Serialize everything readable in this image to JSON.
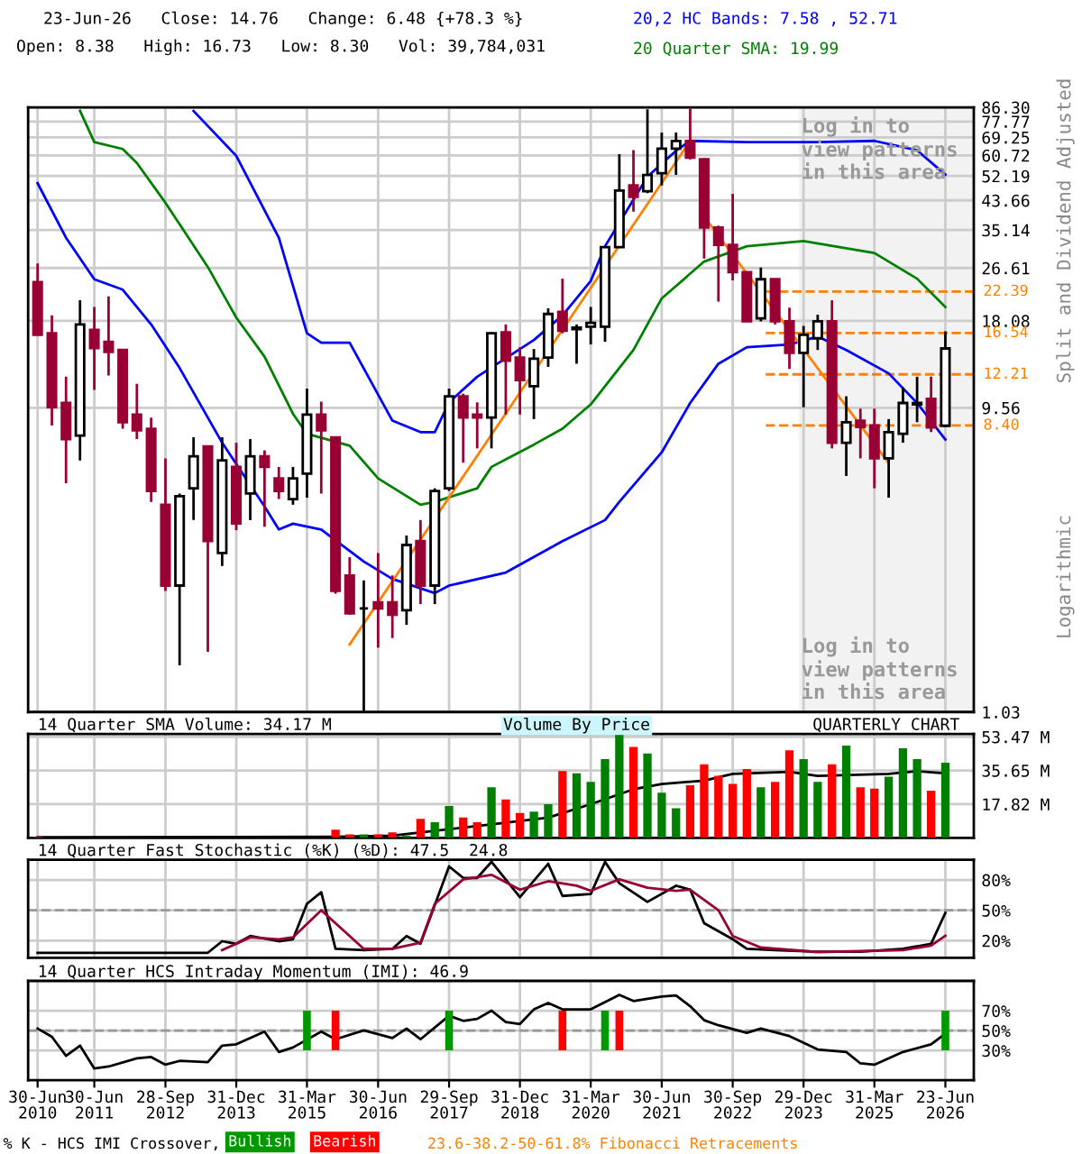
{
  "chart_data": [
    {
      "type": "candlestick",
      "title": "23-Jun-26   Close: 14.76   Change: 6.48 {+78.3 %}",
      "subtitle": "Open: 8.38   High: 16.73   Low: 8.30   Vol: 39,784,031",
      "x": [
        "2010-06",
        "2010-09",
        "2010-12",
        "2011-03",
        "2011-06",
        "2011-09",
        "2011-12",
        "2012-03",
        "2012-06",
        "2012-09",
        "2012-12",
        "2013-03",
        "2013-06",
        "2013-09",
        "2013-12",
        "2014-03",
        "2014-06",
        "2014-09",
        "2014-12",
        "2015-03",
        "2015-06",
        "2015-09",
        "2015-12",
        "2016-03",
        "2016-06",
        "2016-09",
        "2016-12",
        "2017-03",
        "2017-06",
        "2017-09",
        "2017-12",
        "2018-03",
        "2018-06",
        "2018-09",
        "2018-12",
        "2019-03",
        "2019-06",
        "2019-09",
        "2019-12",
        "2020-03",
        "2020-06",
        "2020-09",
        "2020-12",
        "2021-03",
        "2021-06",
        "2021-09",
        "2021-12",
        "2022-03",
        "2022-06",
        "2022-09",
        "2022-12",
        "2023-03",
        "2023-06",
        "2023-09",
        "2023-12",
        "2024-03",
        "2024-06",
        "2024-09",
        "2024-12",
        "2025-03",
        "2025-06",
        "2025-09",
        "2025-12",
        "2026-03",
        "2026-06"
      ],
      "ohlc": [
        [
          24.0,
          27.5,
          16.3,
          16.3
        ],
        [
          16.5,
          18.8,
          8.4,
          9.6
        ],
        [
          9.9,
          12.0,
          5.5,
          7.6
        ],
        [
          7.8,
          21.0,
          6.5,
          17.6
        ],
        [
          16.9,
          20.0,
          10.9,
          14.8
        ],
        [
          15.5,
          21.6,
          12.1,
          14.4
        ],
        [
          14.6,
          14.6,
          8.2,
          8.6
        ],
        [
          9.1,
          11.4,
          7.6,
          8.1
        ],
        [
          8.2,
          8.9,
          4.8,
          5.2
        ],
        [
          4.7,
          6.6,
          2.5,
          2.6
        ],
        [
          2.6,
          5.1,
          1.45,
          5.0
        ],
        [
          5.3,
          7.7,
          4.2,
          6.7
        ],
        [
          7.2,
          7.2,
          1.6,
          3.6
        ],
        [
          3.3,
          7.7,
          3.0,
          6.5
        ],
        [
          6.2,
          7.4,
          3.9,
          4.1
        ],
        [
          5.1,
          7.6,
          4.2,
          6.7
        ],
        [
          6.7,
          7.0,
          4.0,
          6.2
        ],
        [
          5.7,
          6.2,
          4.9,
          5.2
        ],
        [
          4.9,
          6.2,
          4.7,
          5.7
        ],
        [
          5.9,
          11.0,
          4.95,
          9.1
        ],
        [
          9.1,
          10.0,
          5.1,
          8.1
        ],
        [
          7.7,
          7.7,
          2.45,
          2.5
        ],
        [
          2.8,
          3.2,
          2.1,
          2.12
        ],
        [
          2.2,
          2.7,
          1.03,
          2.2
        ],
        [
          2.3,
          3.3,
          1.65,
          2.2
        ],
        [
          2.3,
          2.8,
          1.77,
          2.1
        ],
        [
          2.17,
          3.75,
          1.95,
          3.5
        ],
        [
          3.6,
          4.2,
          2.27,
          2.6
        ],
        [
          2.6,
          5.3,
          2.27,
          5.2
        ],
        [
          5.3,
          11.0,
          5.2,
          10.4
        ],
        [
          10.4,
          10.6,
          6.4,
          8.9
        ],
        [
          9.1,
          9.95,
          7.1,
          8.9
        ],
        [
          8.9,
          16.6,
          7.1,
          16.5
        ],
        [
          16.6,
          17.6,
          9.1,
          13.5
        ],
        [
          13.8,
          14.9,
          9.1,
          11.7
        ],
        [
          11.2,
          14.7,
          8.8,
          13.7
        ],
        [
          13.8,
          19.8,
          12.9,
          19.0
        ],
        [
          19.3,
          24.6,
          16.5,
          16.8
        ],
        [
          17.0,
          17.6,
          13.2,
          17.2
        ],
        [
          17.3,
          20.0,
          15.2,
          17.8
        ],
        [
          17.3,
          31.2,
          15.5,
          31.0
        ],
        [
          31.0,
          61.2,
          30.8,
          46.9
        ],
        [
          48.7,
          63.1,
          40.2,
          44.8
        ],
        [
          46.7,
          85.0,
          46.0,
          52.6
        ],
        [
          53.3,
          71.8,
          48.7,
          63.8
        ],
        [
          63.8,
          71.8,
          52.6,
          67.4
        ],
        [
          67.4,
          85.5,
          59.0,
          59.7
        ],
        [
          59.0,
          59.4,
          28.5,
          35.8
        ],
        [
          35.8,
          36.3,
          20.8,
          31.5
        ],
        [
          31.5,
          45.8,
          24.3,
          25.8
        ],
        [
          25.8,
          25.8,
          18.0,
          18.0
        ],
        [
          18.4,
          26.7,
          18.0,
          24.5
        ],
        [
          24.5,
          24.6,
          17.6,
          18.0
        ],
        [
          18.0,
          19.9,
          12.7,
          14.3
        ],
        [
          14.3,
          17.4,
          9.6,
          16.3
        ],
        [
          15.9,
          18.9,
          14.6,
          18.0
        ],
        [
          18.0,
          21.0,
          7.1,
          7.4
        ],
        [
          7.4,
          10.4,
          5.8,
          8.6
        ],
        [
          8.7,
          9.5,
          6.6,
          8.3
        ],
        [
          8.4,
          9.5,
          5.3,
          6.6
        ],
        [
          6.6,
          8.8,
          4.95,
          8.0
        ],
        [
          7.9,
          11.1,
          7.4,
          9.9
        ],
        [
          9.8,
          12.0,
          8.6,
          9.9
        ],
        [
          10.2,
          12.0,
          8.0,
          8.28
        ],
        [
          8.38,
          16.73,
          8.3,
          14.76
        ]
      ],
      "colors": [
        "#990033",
        "#990033",
        "#990033",
        "#000000",
        "#990033",
        "#990033",
        "#990033",
        "#990033",
        "#990033",
        "#990033",
        "#000000",
        "#000000",
        "#990033",
        "#000000",
        "#990033",
        "#000000",
        "#990033",
        "#990033",
        "#000000",
        "#000000",
        "#990033",
        "#990033",
        "#990033",
        "#000000",
        "#990033",
        "#990033",
        "#000000",
        "#990033",
        "#000000",
        "#000000",
        "#990033",
        "#990033",
        "#000000",
        "#990033",
        "#990033",
        "#000000",
        "#000000",
        "#990033",
        "#000000",
        "#000000",
        "#000000",
        "#000000",
        "#990033",
        "#000000",
        "#000000",
        "#000000",
        "#990033",
        "#990033",
        "#990033",
        "#990033",
        "#990033",
        "#000000",
        "#990033",
        "#990033",
        "#000000",
        "#000000",
        "#990033",
        "#000000",
        "#990033",
        "#990033",
        "#000000",
        "#000000",
        "#000000",
        "#990033",
        "#000000"
      ],
      "series": [
        {
          "name": "20,2 HC Bands: 7.58 , 52.71",
          "type": "line",
          "color": "#0000ff",
          "x": [
            "2013-03",
            "2013-12",
            "2014-09",
            "2015-03",
            "2015-06",
            "2015-12",
            "2016-09",
            "2017-03",
            "2017-06",
            "2017-09",
            "2018-03",
            "2019-03",
            "2019-09",
            "2020-03",
            "2020-06",
            "2021-03",
            "2021-09",
            "2021-12",
            "2022-12",
            "2024-03",
            "2025-03",
            "2025-12",
            "2026-06"
          ],
          "values": [
            84,
            60.5,
            33.2,
            16.5,
            15.4,
            15.4,
            8.7,
            8.0,
            8.0,
            9.95,
            12.0,
            15.7,
            18.8,
            24.2,
            31.2,
            51.9,
            62.8,
            67.5,
            66.9,
            66.9,
            67.5,
            63,
            52.71
          ]
        },
        {
          "type": "line",
          "color": "#0000ff",
          "x": [
            "2010-06",
            "2010-12",
            "2011-06",
            "2011-12",
            "2012-06",
            "2012-12",
            "2013-09",
            "2014-06",
            "2014-09",
            "2014-12",
            "2015-06",
            "2016-03",
            "2016-09",
            "2017-06",
            "2017-09",
            "2018-09",
            "2019-09",
            "2020-06",
            "2020-09",
            "2021-06",
            "2021-12",
            "2022-06",
            "2022-12",
            "2023-09",
            "2024-03",
            "2024-09",
            "2025-06",
            "2025-12",
            "2026-06"
          ],
          "values": [
            49.5,
            33.2,
            24.5,
            22.7,
            17.6,
            12.8,
            7.4,
            4.64,
            3.92,
            4.09,
            3.92,
            3.1,
            2.73,
            2.46,
            2.6,
            2.86,
            3.6,
            4.2,
            4.8,
            6.9,
            9.9,
            13.2,
            14.9,
            15.2,
            16.1,
            14.6,
            12.3,
            9.9,
            7.58
          ]
        },
        {
          "name": "20 Quarter SMA: 19.99",
          "type": "line",
          "color": "#008000",
          "x": [
            "2011-03",
            "2011-06",
            "2011-12",
            "2012-03",
            "2012-09",
            "2013-06",
            "2013-12",
            "2014-06",
            "2014-12",
            "2015-03",
            "2015-12",
            "2016-06",
            "2017-03",
            "2017-06",
            "2018-03",
            "2018-06",
            "2019-03",
            "2019-09",
            "2020-03",
            "2020-12",
            "2021-06",
            "2022-03",
            "2022-12",
            "2023-12",
            "2025-03",
            "2025-12",
            "2026-06"
          ],
          "values": [
            84.1,
            66.9,
            63.6,
            57.4,
            42.9,
            26.8,
            18.5,
            13.9,
            9.15,
            7.9,
            7.24,
            5.7,
            4.7,
            4.8,
            5.3,
            6.2,
            7.3,
            8.2,
            9.8,
            14.6,
            21.3,
            27.9,
            31.2,
            32.4,
            29.7,
            24.6,
            19.99
          ]
        },
        {
          "type": "line",
          "color": "#ff8000",
          "x": [
            "2015-12",
            "2021-12"
          ],
          "values": [
            1.69,
            67.5
          ]
        },
        {
          "type": "line",
          "color": "#ff8000",
          "x": [
            "2022-03",
            "2025-06"
          ],
          "values": [
            38.8,
            6.38
          ]
        }
      ],
      "log": true,
      "xlim": [
        "2010-04",
        "2026-12"
      ],
      "ylim": [
        1.03,
        86.3
      ],
      "yticks": [
        1.03,
        9.56,
        18.08,
        26.61,
        35.14,
        43.66,
        52.19,
        60.72,
        69.25,
        77.77,
        {
          "value": 86.3,
          "label": "86.30"
        }
      ],
      "xticks": [
        "2010-06",
        "2011-06",
        "2012-09",
        "2013-12",
        "2015-03",
        "2016-06",
        "2017-09",
        "2018-12",
        "2020-03",
        "2021-06",
        "2022-09",
        "2023-12",
        "2025-03",
        "2026-06"
      ],
      "tick_labels": "y",
      "grid": true,
      "legend": "top right",
      "ref_lines": [
        {
          "axis": "y",
          "value": 22.39,
          "label": "22.39",
          "color": "#ff8000",
          "line_style": "dashed"
        },
        {
          "axis": "y",
          "value": 16.54,
          "label": "16.54",
          "color": "#ff8000",
          "line_style": "dashed"
        },
        {
          "axis": "y",
          "value": 12.21,
          "label": "12.21",
          "color": "#ff8000",
          "line_style": "dashed"
        },
        {
          "axis": "y",
          "value": 8.4,
          "label": "8.40",
          "color": "#ff8000",
          "line_style": "dashed"
        }
      ],
      "bands": [
        {
          "axis": "x",
          "from": "2023-11",
          "to": "2026-12",
          "label": "Log in to view patterns in this area",
          "color": "#f2f2f2"
        }
      ],
      "annotations": [
        "Split and Dividend Adjusted",
        "Logarithmic",
        "Log in to view patterns in this area",
        "23.6-38.2-50-61.8% Fibonacci Retracements"
      ]
    },
    {
      "type": "bar",
      "title": "14 Quarter SMA Volume: 34.17 M",
      "x": [
        "2010-06",
        "2010-09",
        "2010-12",
        "2011-03",
        "2011-06",
        "2011-09",
        "2011-12",
        "2012-03",
        "2012-06",
        "2012-09",
        "2012-12",
        "2013-03",
        "2013-06",
        "2013-09",
        "2013-12",
        "2014-03",
        "2014-06",
        "2014-09",
        "2014-12",
        "2015-03",
        "2015-06",
        "2015-09",
        "2015-12",
        "2016-03",
        "2016-06",
        "2016-09",
        "2016-12",
        "2017-03",
        "2017-06",
        "2017-09",
        "2017-12",
        "2018-03",
        "2018-06",
        "2018-09",
        "2018-12",
        "2019-03",
        "2019-06",
        "2019-09",
        "2019-12",
        "2020-03",
        "2020-06",
        "2020-09",
        "2020-12",
        "2021-03",
        "2021-06",
        "2021-09",
        "2021-12",
        "2022-03",
        "2022-06",
        "2022-09",
        "2022-12",
        "2023-03",
        "2023-06",
        "2023-09",
        "2023-12",
        "2024-03",
        "2024-06",
        "2024-09",
        "2024-12",
        "2025-03",
        "2025-06",
        "2025-09",
        "2025-12",
        "2026-03",
        "2026-06"
      ],
      "values": [
        0.5,
        null,
        null,
        null,
        null,
        null,
        null,
        null,
        null,
        null,
        null,
        null,
        null,
        null,
        null,
        null,
        null,
        null,
        null,
        null,
        null,
        4.3,
        1.8,
        1.8,
        1.8,
        2.9,
        1.1,
        10.0,
        8.2,
        16.8,
        10.7,
        8.2,
        26.7,
        20.3,
        13.2,
        13.9,
        17.8,
        35.3,
        34.2,
        29.6,
        41.7,
        54.5,
        48.1,
        44.6,
        23.9,
        15.7,
        27.8,
        38.9,
        32.8,
        28.5,
        36.4,
        26.7,
        29.6,
        46.3,
        41.7,
        29.6,
        38.9,
        48.8,
        26.7,
        26.0,
        32.4,
        47.4,
        41.7,
        25.0,
        39.78
      ],
      "colors": [
        "#ff0000",
        "#ff0000",
        "#ff0000",
        "#ff0000",
        "#ff0000",
        "#ff0000",
        "#ff0000",
        "#ff0000",
        "#ff0000",
        "#ff0000",
        "#ff0000",
        "#ff0000",
        "#ff0000",
        "#ff0000",
        "#ff0000",
        "#ff0000",
        "#ff0000",
        "#ff0000",
        "#ff0000",
        "#ff0000",
        "#ff0000",
        "#ff0000",
        "#ff0000",
        "#008000",
        "#ff0000",
        "#ff0000",
        "#008000",
        "#ff0000",
        "#008000",
        "#008000",
        "#ff0000",
        "#ff0000",
        "#008000",
        "#ff0000",
        "#ff0000",
        "#008000",
        "#008000",
        "#ff0000",
        "#008000",
        "#008000",
        "#008000",
        "#008000",
        "#ff0000",
        "#008000",
        "#008000",
        "#008000",
        "#ff0000",
        "#ff0000",
        "#ff0000",
        "#ff0000",
        "#ff0000",
        "#008000",
        "#ff0000",
        "#ff0000",
        "#008000",
        "#008000",
        "#ff0000",
        "#008000",
        "#ff0000",
        "#ff0000",
        "#008000",
        "#008000",
        "#008000",
        "#ff0000",
        "#008000"
      ],
      "series": [
        {
          "type": "line",
          "color": "#000000",
          "x": [
            "2010-06",
            "2015-09",
            "2016-09",
            "2018-06",
            "2019-06",
            "2020-03",
            "2020-12",
            "2021-06",
            "2022-03",
            "2022-09",
            "2023-09",
            "2024-03",
            "2025-06",
            "2025-12",
            "2026-06"
          ],
          "values": [
            0.3,
            0.5,
            1.1,
            7.1,
            10.7,
            17.8,
            25.7,
            28.5,
            30.3,
            33.9,
            34.9,
            32.8,
            33.9,
            35.3,
            34.17
          ]
        }
      ],
      "xlim": [
        "2010-04",
        "2026-12"
      ],
      "ylim": [
        0,
        55
      ],
      "yticks": [
        {
          "value": 17.82,
          "label": "17.82 M"
        },
        {
          "value": 35.65,
          "label": "35.65 M"
        },
        {
          "value": 53.47,
          "label": "53.47 M"
        }
      ],
      "xticks": [
        "2010-06",
        "2011-06",
        "2012-09",
        "2013-12",
        "2015-03",
        "2016-06",
        "2017-09",
        "2018-12",
        "2020-03",
        "2021-06",
        "2022-09",
        "2023-12",
        "2025-03",
        "2026-06"
      ],
      "tick_labels": "y",
      "grid": true,
      "annotations": [
        "Volume By Price",
        "QUARTERLY CHART"
      ]
    },
    {
      "type": "line",
      "title": "14 Quarter Fast Stochastic (%K) (%D): 47.5  24.8",
      "series": [
        {
          "color": "#000000",
          "x": [
            "2010-06",
            "2013-06",
            "2013-09",
            "2013-12",
            "2014-03",
            "2014-09",
            "2014-12",
            "2015-03",
            "2015-06",
            "2015-09",
            "2016-03",
            "2016-09",
            "2016-12",
            "2017-03",
            "2017-09",
            "2017-12",
            "2018-03",
            "2018-06",
            "2018-12",
            "2019-06",
            "2019-09",
            "2020-03",
            "2020-06",
            "2020-09",
            "2021-03",
            "2021-09",
            "2021-12",
            "2022-03",
            "2022-09",
            "2022-12",
            "2023-06",
            "2024-03",
            "2024-12",
            "2025-09",
            "2026-03",
            "2026-06"
          ],
          "values": [
            8,
            8,
            19.4,
            16.9,
            24.6,
            19.4,
            21.4,
            56.4,
            67.9,
            11.9,
            10.6,
            11.9,
            24.6,
            16.9,
            93.4,
            82,
            82,
            97.9,
            62.9,
            96,
            64.2,
            66.1,
            97.9,
            76.8,
            58.3,
            74.3,
            70.4,
            37.3,
            21.4,
            11.9,
            10.6,
            9,
            9,
            11.9,
            16.9,
            47.5
          ]
        },
        {
          "color": "#990033",
          "x": [
            "2013-09",
            "2014-03",
            "2014-09",
            "2014-12",
            "2015-06",
            "2015-12",
            "2016-03",
            "2016-09",
            "2017-03",
            "2017-06",
            "2017-12",
            "2018-06",
            "2018-12",
            "2019-06",
            "2019-12",
            "2020-03",
            "2020-09",
            "2021-03",
            "2021-09",
            "2021-12",
            "2022-06",
            "2022-09",
            "2023-03",
            "2024-03",
            "2025-09",
            "2026-03",
            "2026-06"
          ],
          "values": [
            10.6,
            23.3,
            21.4,
            23.3,
            50,
            24.6,
            11.9,
            11.9,
            18,
            56.4,
            80.6,
            85.1,
            70.4,
            78.7,
            74.3,
            69.3,
            80.6,
            72.3,
            69.3,
            70.4,
            50,
            24.6,
            13.2,
            8.7,
            10.6,
            15.1,
            24.8
          ]
        }
      ],
      "xlim": [
        "2010-04",
        "2026-12"
      ],
      "ylim": [
        3,
        100
      ],
      "yticks": [
        {
          "value": 20,
          "label": "20%"
        },
        {
          "value": 50,
          "label": "50%"
        },
        {
          "value": 80,
          "label": "80%"
        }
      ],
      "xticks": [
        "2010-06",
        "2011-06",
        "2012-09",
        "2013-12",
        "2015-03",
        "2016-06",
        "2017-09",
        "2018-12",
        "2020-03",
        "2021-06",
        "2022-09",
        "2023-12",
        "2025-03",
        "2026-06"
      ],
      "tick_labels": "y",
      "grid": true,
      "ref_lines": [
        {
          "axis": "y",
          "value": 50,
          "color": "#999999",
          "line_style": "dashed"
        }
      ]
    },
    {
      "type": "line",
      "title": "14 Quarter HCS Intraday Momentum (IMI): 46.9",
      "legend_title": "% K - HCS IMI Crossover,",
      "series": [
        {
          "color": "#000000",
          "x": [
            "2010-06",
            "2010-09",
            "2010-12",
            "2011-03",
            "2011-06",
            "2011-09",
            "2012-03",
            "2012-06",
            "2012-09",
            "2012-12",
            "2013-06",
            "2013-09",
            "2013-12",
            "2014-06",
            "2014-09",
            "2014-12",
            "2015-06",
            "2015-09",
            "2016-03",
            "2016-09",
            "2016-12",
            "2017-03",
            "2017-09",
            "2017-12",
            "2018-03",
            "2018-06",
            "2018-09",
            "2018-12",
            "2019-03",
            "2019-06",
            "2019-09",
            "2020-03",
            "2020-09",
            "2020-12",
            "2021-06",
            "2021-09",
            "2021-12",
            "2022-03",
            "2022-06",
            "2022-12",
            "2023-03",
            "2023-09",
            "2024-03",
            "2024-09",
            "2024-12",
            "2025-03",
            "2025-09",
            "2026-03",
            "2026-06"
          ],
          "values": [
            52,
            43.7,
            24.5,
            34.8,
            11.7,
            13.7,
            22,
            23.3,
            15.6,
            19.4,
            18.1,
            34.8,
            36.1,
            48.9,
            28.4,
            32.9,
            48.9,
            41.2,
            50.1,
            42.5,
            52,
            41.2,
            64.9,
            59.8,
            61.7,
            70,
            58.5,
            56.6,
            71.3,
            77.8,
            71.3,
            71.3,
            86,
            79.7,
            84.2,
            85.4,
            74.5,
            60.4,
            55.3,
            47.6,
            52,
            44.4,
            30.9,
            28.4,
            16.9,
            15.6,
            28.4,
            36.1,
            46.9
          ]
        },
        {
          "name": "Bullish",
          "type": "bar",
          "color": "#009900",
          "x": [
            "2015-03",
            "2017-09",
            "2020-06",
            "2026-06"
          ],
          "base": [
            30,
            30,
            30,
            30
          ],
          "values": [
            40,
            40,
            40,
            40
          ]
        },
        {
          "name": "Bearish",
          "type": "bar",
          "color": "#ff0000",
          "x": [
            "2015-09",
            "2019-09",
            "2020-09"
          ],
          "base": [
            30,
            30,
            30
          ],
          "values": [
            40,
            40,
            40
          ]
        }
      ],
      "xlim": [
        "2010-04",
        "2026-12"
      ],
      "ylim": [
        0,
        100
      ],
      "yticks": [
        {
          "value": 30,
          "label": "30%"
        },
        {
          "value": 50,
          "label": "50%"
        },
        {
          "value": 70,
          "label": "70%"
        }
      ],
      "xticks": [
        {
          "value": "2010-06",
          "label": "30-Jun\n2010"
        },
        {
          "value": "2011-06",
          "label": "30-Jun\n2011"
        },
        {
          "value": "2012-09",
          "label": "28-Sep\n2012"
        },
        {
          "value": "2013-12",
          "label": "31-Dec\n2013"
        },
        {
          "value": "2015-03",
          "label": "31-Mar\n2015"
        },
        {
          "value": "2016-06",
          "label": "30-Jun\n2016"
        },
        {
          "value": "2017-09",
          "label": "29-Sep\n2017"
        },
        {
          "value": "2018-12",
          "label": "31-Dec\n2018"
        },
        {
          "value": "2020-03",
          "label": "31-Mar\n2020"
        },
        {
          "value": "2021-06",
          "label": "30-Jun\n2021"
        },
        {
          "value": "2022-09",
          "label": "30-Sep\n2022"
        },
        {
          "value": "2023-12",
          "label": "29-Dec\n2023"
        },
        {
          "value": "2025-03",
          "label": "31-Mar\n2025"
        },
        {
          "value": "2026-06",
          "label": "23-Jun\n2026"
        }
      ],
      "grid": true,
      "legend": "bottom",
      "ref_lines": [
        {
          "axis": "y",
          "value": 50,
          "color": "#999999",
          "line_style": "dashed"
        }
      ]
    }
  ]
}
